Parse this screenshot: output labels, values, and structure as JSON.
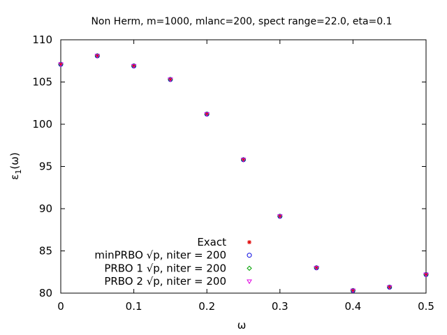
{
  "chart_data": {
    "type": "scatter",
    "title": "Non Herm, m=1000, mlanc=200, spect range=22.0, eta=0.1",
    "xlabel": "ω",
    "ylabel_main": "ε",
    "ylabel_sub": "1",
    "ylabel_tail": "(ω)",
    "xlim": [
      0,
      0.5
    ],
    "ylim": [
      80,
      110
    ],
    "xticks": [
      0,
      0.1,
      0.2,
      0.3,
      0.4,
      0.5
    ],
    "xtick_labels": [
      "0",
      "0.1",
      "0.2",
      "0.3",
      "0.4",
      "0.5"
    ],
    "yticks": [
      80,
      85,
      90,
      95,
      100,
      105,
      110
    ],
    "ytick_labels": [
      "80",
      "85",
      "90",
      "95",
      "100",
      "105",
      "110"
    ],
    "grid": false,
    "legend_position": "bottom-left",
    "x": [
      0,
      0.05,
      0.1,
      0.15,
      0.2,
      0.25,
      0.3,
      0.35,
      0.4,
      0.45,
      0.5
    ],
    "series": [
      {
        "name": "Exact",
        "marker": "star",
        "color": "#e00000",
        "values": [
          107.1,
          108.1,
          106.9,
          105.3,
          101.2,
          95.8,
          89.1,
          83.0,
          80.3,
          80.7,
          82.2
        ]
      },
      {
        "name": "minPRBO √p, niter = 200",
        "marker": "circle",
        "color": "#0000e0",
        "values": [
          107.1,
          108.1,
          106.9,
          105.3,
          101.2,
          95.8,
          89.1,
          83.0,
          80.3,
          80.7,
          82.2
        ]
      },
      {
        "name": "PRBO 1 √p, niter = 200",
        "marker": "diamond",
        "color": "#00a000",
        "values": [
          107.1,
          108.1,
          106.9,
          105.3,
          101.2,
          95.8,
          89.1,
          83.0,
          80.3,
          80.7,
          82.2
        ]
      },
      {
        "name": "PRBO 2 √p, niter = 200",
        "marker": "triangle-down",
        "color": "#e000e0",
        "values": [
          107.1,
          108.1,
          106.9,
          105.3,
          101.2,
          95.8,
          89.1,
          83.0,
          80.3,
          80.7,
          82.2
        ]
      }
    ]
  }
}
